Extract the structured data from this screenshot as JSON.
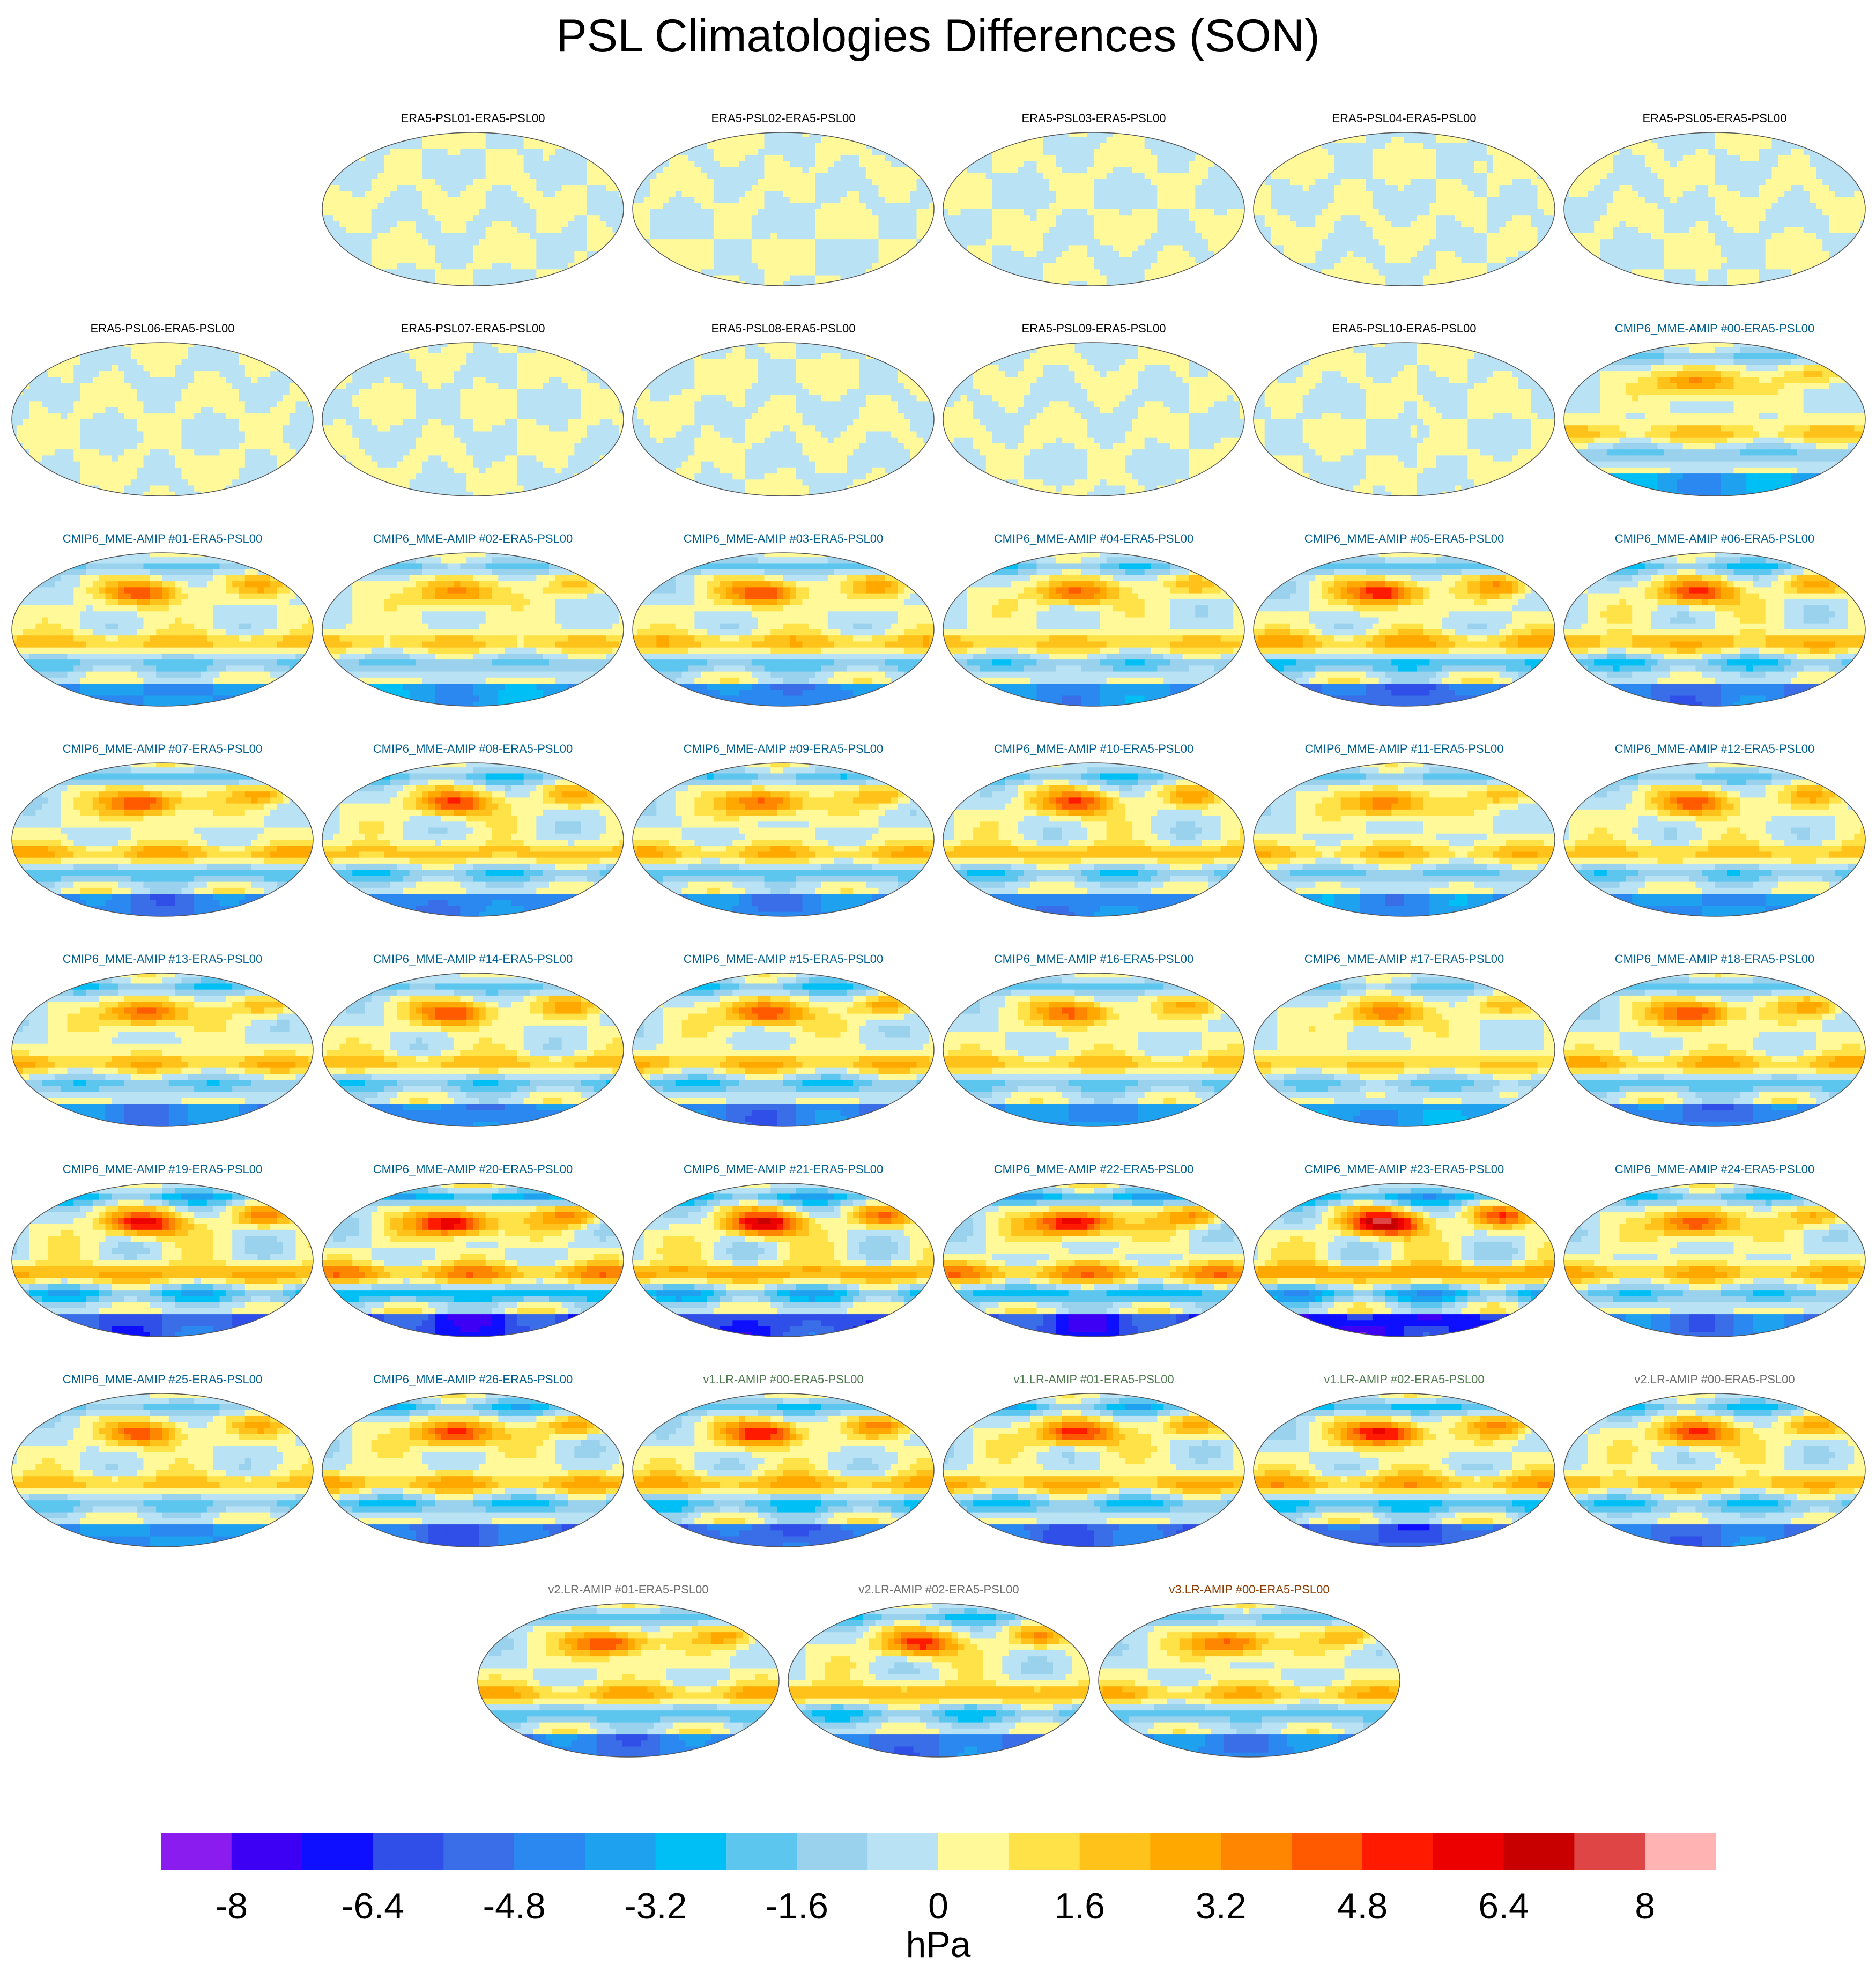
{
  "chart_data": {
    "type": "heatmap",
    "title": "PSL Climatologies Differences (SON)",
    "projection": "global map grid",
    "panels": [
      {
        "label": "ERA5-PSL01-ERA5-PSL00",
        "kind": "era",
        "amplitude": 0.3
      },
      {
        "label": "ERA5-PSL02-ERA5-PSL00",
        "kind": "era",
        "amplitude": 0.3
      },
      {
        "label": "ERA5-PSL03-ERA5-PSL00",
        "kind": "era",
        "amplitude": 0.3
      },
      {
        "label": "ERA5-PSL04-ERA5-PSL00",
        "kind": "era",
        "amplitude": 0.3
      },
      {
        "label": "ERA5-PSL05-ERA5-PSL00",
        "kind": "era",
        "amplitude": 0.3
      },
      {
        "label": "ERA5-PSL06-ERA5-PSL00",
        "kind": "era",
        "amplitude": 0.3
      },
      {
        "label": "ERA5-PSL07-ERA5-PSL00",
        "kind": "era",
        "amplitude": 0.3
      },
      {
        "label": "ERA5-PSL08-ERA5-PSL00",
        "kind": "era",
        "amplitude": 0.3
      },
      {
        "label": "ERA5-PSL09-ERA5-PSL00",
        "kind": "era",
        "amplitude": 0.3
      },
      {
        "label": "ERA5-PSL10-ERA5-PSL00",
        "kind": "era",
        "amplitude": 0.3
      },
      {
        "label": "CMIP6_MME-AMIP  #00-ERA5-PSL00",
        "kind": "cmip",
        "amplitude": 4.5
      },
      {
        "label": "CMIP6_MME-AMIP  #01-ERA5-PSL00",
        "kind": "cmip",
        "amplitude": 5.0
      },
      {
        "label": "CMIP6_MME-AMIP  #02-ERA5-PSL00",
        "kind": "cmip",
        "amplitude": 4.5
      },
      {
        "label": "CMIP6_MME-AMIP  #03-ERA5-PSL00",
        "kind": "cmip",
        "amplitude": 5.5
      },
      {
        "label": "CMIP6_MME-AMIP  #04-ERA5-PSL00",
        "kind": "cmip",
        "amplitude": 5.0
      },
      {
        "label": "CMIP6_MME-AMIP  #05-ERA5-PSL00",
        "kind": "cmip",
        "amplitude": 6.5
      },
      {
        "label": "CMIP6_MME-AMIP  #06-ERA5-PSL00",
        "kind": "cmip",
        "amplitude": 6.0
      },
      {
        "label": "CMIP6_MME-AMIP  #07-ERA5-PSL00",
        "kind": "cmip",
        "amplitude": 6.0
      },
      {
        "label": "CMIP6_MME-AMIP  #08-ERA5-PSL00",
        "kind": "cmip",
        "amplitude": 5.5
      },
      {
        "label": "CMIP6_MME-AMIP  #09-ERA5-PSL00",
        "kind": "cmip",
        "amplitude": 5.5
      },
      {
        "label": "CMIP6_MME-AMIP  #10-ERA5-PSL00",
        "kind": "cmip",
        "amplitude": 5.5
      },
      {
        "label": "CMIP6_MME-AMIP  #11-ERA5-PSL00",
        "kind": "cmip",
        "amplitude": 5.0
      },
      {
        "label": "CMIP6_MME-AMIP  #12-ERA5-PSL00",
        "kind": "cmip",
        "amplitude": 5.0
      },
      {
        "label": "CMIP6_MME-AMIP  #13-ERA5-PSL00",
        "kind": "cmip",
        "amplitude": 5.5
      },
      {
        "label": "CMIP6_MME-AMIP  #14-ERA5-PSL00",
        "kind": "cmip",
        "amplitude": 5.5
      },
      {
        "label": "CMIP6_MME-AMIP  #15-ERA5-PSL00",
        "kind": "cmip",
        "amplitude": 6.0
      },
      {
        "label": "CMIP6_MME-AMIP  #16-ERA5-PSL00",
        "kind": "cmip",
        "amplitude": 5.0
      },
      {
        "label": "CMIP6_MME-AMIP  #17-ERA5-PSL00",
        "kind": "cmip",
        "amplitude": 4.5
      },
      {
        "label": "CMIP6_MME-AMIP  #18-ERA5-PSL00",
        "kind": "cmip",
        "amplitude": 6.0
      },
      {
        "label": "CMIP6_MME-AMIP  #19-ERA5-PSL00",
        "kind": "cmip",
        "amplitude": 7.0
      },
      {
        "label": "CMIP6_MME-AMIP  #20-ERA5-PSL00",
        "kind": "cmip",
        "amplitude": 8.0
      },
      {
        "label": "CMIP6_MME-AMIP  #21-ERA5-PSL00",
        "kind": "cmip",
        "amplitude": 7.5
      },
      {
        "label": "CMIP6_MME-AMIP  #22-ERA5-PSL00",
        "kind": "cmip",
        "amplitude": 8.0
      },
      {
        "label": "CMIP6_MME-AMIP  #23-ERA5-PSL00",
        "kind": "cmip",
        "amplitude": 8.5
      },
      {
        "label": "CMIP6_MME-AMIP  #24-ERA5-PSL00",
        "kind": "cmip",
        "amplitude": 6.0
      },
      {
        "label": "CMIP6_MME-AMIP  #25-ERA5-PSL00",
        "kind": "cmip",
        "amplitude": 5.0
      },
      {
        "label": "CMIP6_MME-AMIP  #26-ERA5-PSL00",
        "kind": "cmip",
        "amplitude": 6.5
      },
      {
        "label": "v1.LR-AMIP  #00-ERA5-PSL00",
        "kind": "v1",
        "amplitude": 6.5
      },
      {
        "label": "v1.LR-AMIP  #01-ERA5-PSL00",
        "kind": "v1",
        "amplitude": 6.5
      },
      {
        "label": "v1.LR-AMIP  #02-ERA5-PSL00",
        "kind": "v1",
        "amplitude": 7.0
      },
      {
        "label": "v2.LR-AMIP  #00-ERA5-PSL00",
        "kind": "v2",
        "amplitude": 6.0
      },
      {
        "label": "v2.LR-AMIP  #01-ERA5-PSL00",
        "kind": "v2",
        "amplitude": 6.0
      },
      {
        "label": "v2.LR-AMIP  #02-ERA5-PSL00",
        "kind": "v2",
        "amplitude": 6.0
      },
      {
        "label": "v3.LR-AMIP  #00-ERA5-PSL00",
        "kind": "v3",
        "amplitude": 5.5
      }
    ],
    "colorbar": {
      "units": "hPa",
      "levels": [
        -8,
        -7.2,
        -6.4,
        -5.6,
        -4.8,
        -4,
        -3.2,
        -2.4,
        -1.6,
        -0.8,
        0,
        0.8,
        1.6,
        2.4,
        3.2,
        4,
        4.8,
        5.6,
        6.4,
        7.2,
        8
      ],
      "tick_labels": [
        "-8",
        "-6.4",
        "-4.8",
        "-3.2",
        "-1.6",
        "0",
        "1.6",
        "3.2",
        "4.8",
        "6.4",
        "8"
      ],
      "colors": [
        "#8a1cf0",
        "#3d00f5",
        "#0f0fff",
        "#2f4fe8",
        "#3a6ee8",
        "#2a88f0",
        "#1ea2f0",
        "#00bff5",
        "#5cc6ef",
        "#9ad2ee",
        "#b9e2f5",
        "#fff99a",
        "#ffe247",
        "#ffc21a",
        "#ffa800",
        "#ff8600",
        "#ff5a00",
        "#ff1a00",
        "#ec0000",
        "#c90000",
        "#e04545",
        "#ffb3b3"
      ]
    }
  }
}
